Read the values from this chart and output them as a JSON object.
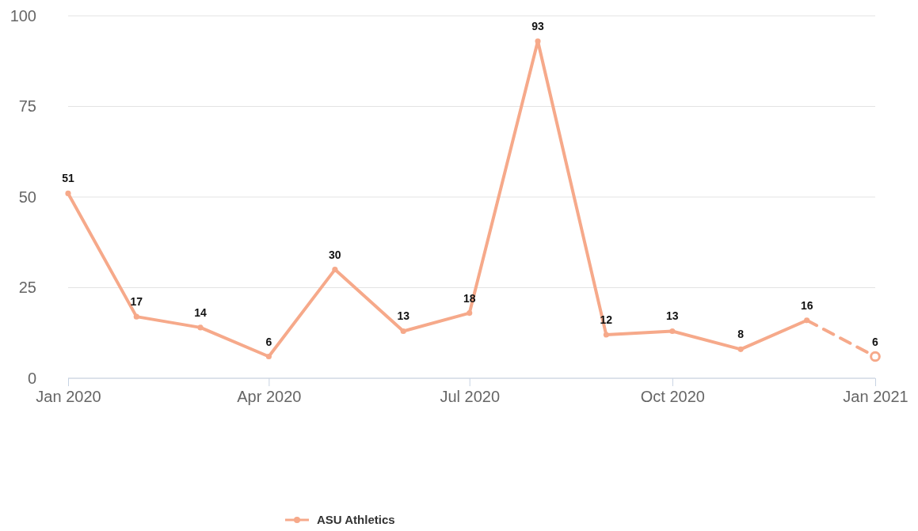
{
  "chart_data": {
    "type": "line",
    "x": [
      "2020-01",
      "2020-02",
      "2020-03",
      "2020-04",
      "2020-05",
      "2020-06",
      "2020-07",
      "2020-08",
      "2020-09",
      "2020-10",
      "2020-11",
      "2020-12"
    ],
    "series": [
      {
        "name": "ASU Athletics",
        "color": "#f6a98a",
        "values": [
          51,
          17,
          14,
          6,
          30,
          13,
          18,
          93,
          12,
          13,
          8,
          16
        ]
      },
      {
        "color": "#f6a98a",
        "x": [
          "2020-12",
          "2021-01"
        ],
        "values": [
          16,
          6
        ],
        "line_style": "dashed",
        "value_labels": [
          null,
          "6"
        ]
      }
    ],
    "xlim": [
      "2020-01",
      "2021-01"
    ],
    "xticks": [
      {
        "value": "2020-01",
        "label": "Jan 2020"
      },
      {
        "value": "2020-04",
        "label": "Apr 2020"
      },
      {
        "value": "2020-07",
        "label": "Jul 2020"
      },
      {
        "value": "2020-10",
        "label": "Oct 2020"
      },
      {
        "value": "2021-01",
        "label": "Jan 2021"
      }
    ],
    "ylim": [
      0,
      100
    ],
    "yticks": [
      0,
      25,
      50,
      75,
      100
    ],
    "grid": "y",
    "legend": "bottom",
    "marker": "circle",
    "data_labels": true,
    "line_style": "solid"
  }
}
